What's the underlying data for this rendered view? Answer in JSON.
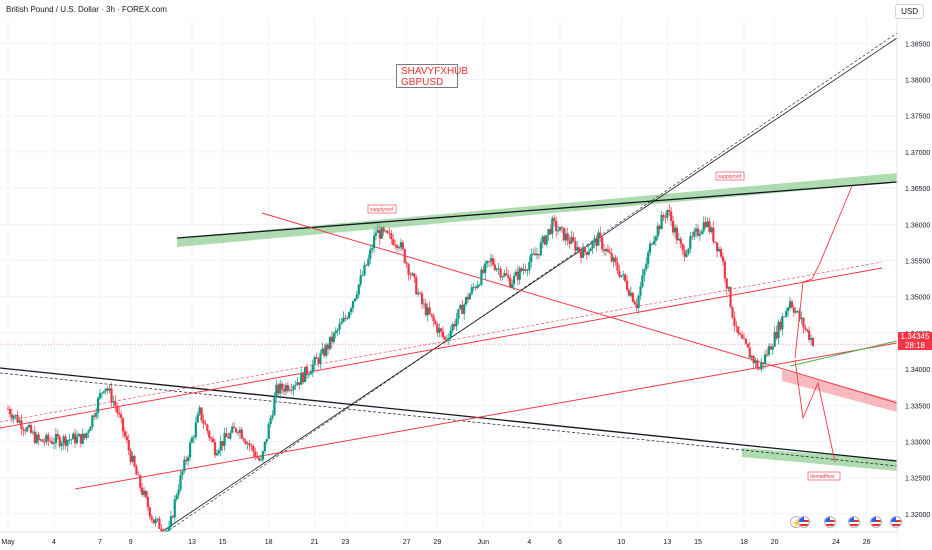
{
  "header": {
    "title": "British Pound / U.S. Dollar · 3h · FOREX.com",
    "currency": "USD"
  },
  "brand": {
    "line1": "SHAVYFXHUB",
    "line2": "GBPUSD"
  },
  "price_tag": {
    "price": "1.34345",
    "countdown": "28:18"
  },
  "colors": {
    "up": "#089981",
    "down": "#f23645",
    "trend_red": "#f23645",
    "zone_green": "#4caf50",
    "zone_red": "#f23645",
    "black_line": "#131722"
  },
  "chart_data": {
    "type": "candlestick",
    "symbol": "GBPUSD",
    "timeframe": "3h",
    "ylim": [
      1.3175,
      1.3885
    ],
    "y_ticks": [
      "1.38500",
      "1.38000",
      "1.37500",
      "1.37000",
      "1.36500",
      "1.36000",
      "1.35500",
      "1.35000",
      "1.34500",
      "1.34000",
      "1.33500",
      "1.33000",
      "1.32500",
      "1.32000"
    ],
    "x_ticks": [
      "May",
      "4",
      "7",
      "9",
      "13",
      "15",
      "18",
      "21",
      "23",
      "27",
      "29",
      "Jun",
      "4",
      "6",
      "10",
      "13",
      "15",
      "18",
      "20",
      "24",
      "26"
    ],
    "x_tick_days": [
      1,
      4,
      7,
      9,
      13,
      15,
      18,
      21,
      23,
      27,
      29,
      32,
      35,
      37,
      41,
      44,
      46,
      49,
      51,
      55,
      57
    ],
    "x_range_days": [
      1,
      59.5
    ],
    "anchors": [
      [
        1,
        1.3345
      ],
      [
        3,
        1.33
      ],
      [
        6,
        1.3305
      ],
      [
        7.3,
        1.338
      ],
      [
        8,
        1.335
      ],
      [
        9.5,
        1.3245
      ],
      [
        10.5,
        1.319
      ],
      [
        11.5,
        1.3175
      ],
      [
        12,
        1.323
      ],
      [
        13.5,
        1.334
      ],
      [
        14.5,
        1.329
      ],
      [
        16,
        1.332
      ],
      [
        17.5,
        1.327
      ],
      [
        18.5,
        1.337
      ],
      [
        20,
        1.3385
      ],
      [
        21.5,
        1.342
      ],
      [
        23,
        1.347
      ],
      [
        24.5,
        1.355
      ],
      [
        25,
        1.359
      ],
      [
        26.5,
        1.3575
      ],
      [
        28,
        1.349
      ],
      [
        29.5,
        1.344
      ],
      [
        31,
        1.35
      ],
      [
        32.5,
        1.355
      ],
      [
        33.8,
        1.352
      ],
      [
        35.5,
        1.356
      ],
      [
        36.5,
        1.36
      ],
      [
        38.5,
        1.356
      ],
      [
        39.5,
        1.358
      ],
      [
        41,
        1.353
      ],
      [
        42,
        1.349
      ],
      [
        43,
        1.358
      ],
      [
        44,
        1.362
      ],
      [
        45,
        1.356
      ],
      [
        46.5,
        1.3605
      ],
      [
        47.5,
        1.356
      ],
      [
        48.5,
        1.345
      ],
      [
        50,
        1.34
      ],
      [
        51,
        1.3445
      ],
      [
        52,
        1.3495
      ],
      [
        53,
        1.3455
      ],
      [
        53.6,
        1.3435
      ]
    ],
    "annotations": [
      "supplyroof",
      "supplyroof",
      "demadfloor"
    ],
    "last_price": "1.34345"
  }
}
